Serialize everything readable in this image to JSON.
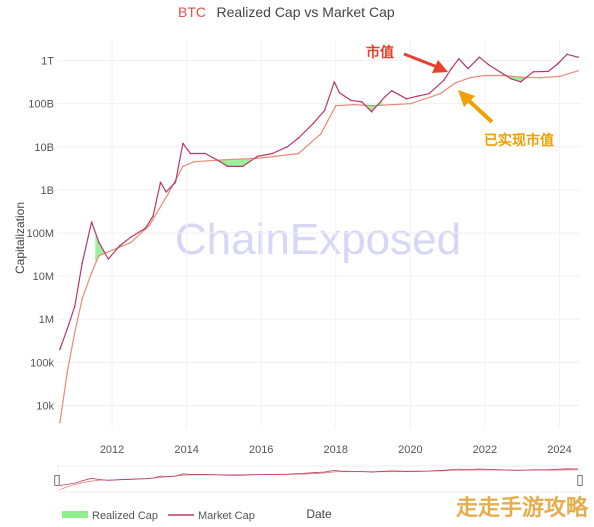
{
  "chart_data": {
    "type": "area",
    "title_prefix": "BTC",
    "title": "Realized Cap vs Market Cap",
    "xlabel": "Date",
    "ylabel": "Capitalization",
    "y_scale": "log",
    "ylim": [
      3000,
      3000000000000
    ],
    "xlim": [
      2010.55,
      2024.55
    ],
    "y_ticks": [
      {
        "value": 10000,
        "label": "10k"
      },
      {
        "value": 100000,
        "label": "100k"
      },
      {
        "value": 1000000,
        "label": "1M"
      },
      {
        "value": 10000000,
        "label": "10M"
      },
      {
        "value": 100000000,
        "label": "100M"
      },
      {
        "value": 1000000000,
        "label": "1B"
      },
      {
        "value": 10000000000,
        "label": "10B"
      },
      {
        "value": 100000000000,
        "label": "100B"
      },
      {
        "value": 1000000000000,
        "label": "1T"
      }
    ],
    "x_ticks": [
      {
        "value": 2012,
        "label": "2012"
      },
      {
        "value": 2014,
        "label": "2014"
      },
      {
        "value": 2016,
        "label": "2016"
      },
      {
        "value": 2018,
        "label": "2018"
      },
      {
        "value": 2020,
        "label": "2020"
      },
      {
        "value": 2022,
        "label": "2022"
      },
      {
        "value": 2024,
        "label": "2024"
      }
    ],
    "series": [
      {
        "name": "Market Cap",
        "color": "#b8386a",
        "x": [
          2010.6,
          2010.8,
          2011.0,
          2011.2,
          2011.45,
          2011.65,
          2011.9,
          2012.2,
          2012.5,
          2012.9,
          2013.1,
          2013.3,
          2013.45,
          2013.7,
          2013.9,
          2014.1,
          2014.5,
          2014.9,
          2015.1,
          2015.5,
          2015.9,
          2016.3,
          2016.7,
          2017.0,
          2017.4,
          2017.7,
          2017.96,
          2018.1,
          2018.4,
          2018.7,
          2018.96,
          2019.3,
          2019.5,
          2019.9,
          2020.2,
          2020.5,
          2020.9,
          2021.1,
          2021.3,
          2021.55,
          2021.85,
          2022.1,
          2022.4,
          2022.7,
          2022.96,
          2023.3,
          2023.7,
          2023.96,
          2024.2,
          2024.5
        ],
        "y": [
          200000,
          600000,
          2000000,
          20000000,
          180000000,
          60000000,
          25000000,
          50000000,
          80000000,
          130000000,
          250000000,
          1500000000,
          900000000,
          1500000000,
          12000000000,
          7000000000,
          7000000000,
          4500000000,
          3500000000,
          3500000000,
          6000000000,
          7000000000,
          10000000000,
          16000000000,
          35000000000,
          70000000000,
          320000000000,
          180000000000,
          120000000000,
          110000000000,
          65000000000,
          140000000000,
          200000000000,
          130000000000,
          150000000000,
          170000000000,
          350000000000,
          650000000000,
          1100000000000,
          650000000000,
          1200000000000,
          800000000000,
          550000000000,
          380000000000,
          320000000000,
          550000000000,
          560000000000,
          850000000000,
          1400000000000,
          1200000000000
        ]
      },
      {
        "name": "Realized Cap",
        "color": "#e88a78",
        "x": [
          2010.6,
          2010.8,
          2011.0,
          2011.2,
          2011.45,
          2011.65,
          2012.0,
          2012.5,
          2013.0,
          2013.5,
          2013.9,
          2014.2,
          2015.0,
          2016.0,
          2017.0,
          2017.6,
          2018.0,
          2018.5,
          2019.0,
          2020.0,
          2020.8,
          2021.2,
          2021.6,
          2022.0,
          2022.5,
          2023.0,
          2023.5,
          2024.0,
          2024.5
        ],
        "y": [
          4000,
          60000,
          500000,
          3000000,
          12000000,
          30000000,
          40000000,
          60000000,
          150000000,
          800000000,
          3500000000,
          4500000000,
          5000000000,
          5500000000,
          7000000000,
          20000000000,
          90000000000,
          95000000000,
          90000000000,
          100000000000,
          170000000000,
          300000000000,
          400000000000,
          450000000000,
          450000000000,
          410000000000,
          400000000000,
          430000000000,
          580000000000
        ]
      }
    ],
    "green_regions": [
      {
        "x_start": 2011.55,
        "x_end": 2011.8
      },
      {
        "x_start": 2014.8,
        "x_end": 2015.75
      },
      {
        "x_start": 2018.85,
        "x_end": 2019.25
      },
      {
        "x_start": 2022.45,
        "x_end": 2023.05
      }
    ],
    "green_color": "#90ee90",
    "annotations": {
      "market_cap_label": "市值",
      "market_cap_arrow_color": "#e8402a",
      "realized_cap_label": "已实现市值",
      "realized_cap_arrow_color": "#f0a000"
    },
    "legend": {
      "position": "bottom-left",
      "realized_label": "Realized Cap",
      "market_label": "Market Cap"
    },
    "watermark": "ChainExposed",
    "corner_watermark": "走走手游攻略",
    "slider_left_handle": "▯",
    "slider_right_handle": "▯"
  }
}
